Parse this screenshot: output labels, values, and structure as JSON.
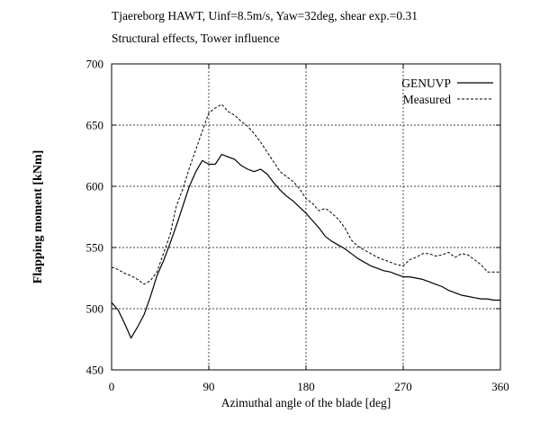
{
  "chart_data": {
    "type": "line",
    "title": "Tjaereborg HAWT, Uinf=8.5m/s, Yaw=32deg, shear exp.=0.31",
    "subtitle": "Structural effects, Tower influence",
    "xlabel": "Azimuthal angle of the blade [deg]",
    "ylabel": "Flapping moment [kNm]",
    "xlim": [
      0,
      360
    ],
    "ylim": [
      450,
      700
    ],
    "xticks": [
      0,
      90,
      180,
      270,
      360
    ],
    "yticks": [
      450,
      500,
      550,
      600,
      650,
      700
    ],
    "xtick_labels": [
      "0",
      "90",
      "180",
      "270",
      "360"
    ],
    "ytick_labels": [
      "450",
      "500",
      "550",
      "600",
      "650",
      "700"
    ],
    "grid": true,
    "legend_position": "top-right",
    "series": [
      {
        "name": "GENUVP",
        "style": "solid",
        "color": "#000000",
        "x": [
          0,
          6,
          12,
          18,
          24,
          30,
          36,
          42,
          48,
          54,
          60,
          66,
          72,
          78,
          84,
          90,
          96,
          102,
          108,
          114,
          120,
          126,
          132,
          138,
          144,
          150,
          156,
          162,
          168,
          174,
          180,
          186,
          192,
          198,
          204,
          210,
          216,
          222,
          228,
          234,
          240,
          246,
          252,
          258,
          264,
          270,
          276,
          282,
          288,
          294,
          300,
          306,
          312,
          318,
          324,
          330,
          336,
          342,
          348,
          354,
          360
        ],
        "y": [
          505,
          499,
          488,
          476,
          485,
          495,
          510,
          527,
          539,
          553,
          568,
          584,
          600,
          612,
          621,
          618,
          618,
          626,
          624,
          622,
          617,
          614,
          612,
          614,
          610,
          603,
          597,
          592,
          588,
          583,
          578,
          572,
          566,
          559,
          555,
          552,
          549,
          545,
          541,
          538,
          535,
          533,
          531,
          530,
          528,
          526,
          526,
          525,
          524,
          522,
          520,
          518,
          515,
          513,
          511,
          510,
          509,
          508,
          508,
          507,
          507
        ]
      },
      {
        "name": "Measured",
        "style": "dashed",
        "color": "#000000",
        "x": [
          0,
          6,
          12,
          18,
          24,
          30,
          36,
          42,
          48,
          54,
          60,
          66,
          72,
          78,
          84,
          90,
          96,
          102,
          108,
          114,
          120,
          126,
          132,
          138,
          144,
          150,
          156,
          162,
          168,
          174,
          180,
          186,
          192,
          198,
          204,
          210,
          216,
          222,
          228,
          234,
          240,
          246,
          252,
          258,
          264,
          270,
          276,
          282,
          288,
          294,
          300,
          306,
          312,
          318,
          324,
          330,
          336,
          342,
          348,
          354,
          360
        ],
        "y": [
          534,
          532,
          529,
          527,
          524,
          520,
          523,
          530,
          545,
          560,
          584,
          598,
          615,
          630,
          645,
          660,
          664,
          667,
          661,
          658,
          653,
          649,
          643,
          636,
          628,
          620,
          612,
          608,
          604,
          598,
          590,
          586,
          580,
          582,
          578,
          573,
          566,
          556,
          551,
          548,
          545,
          542,
          540,
          538,
          536,
          535,
          540,
          542,
          545,
          545,
          543,
          544,
          546,
          542,
          545,
          544,
          540,
          536,
          530,
          530,
          530
        ]
      }
    ]
  }
}
